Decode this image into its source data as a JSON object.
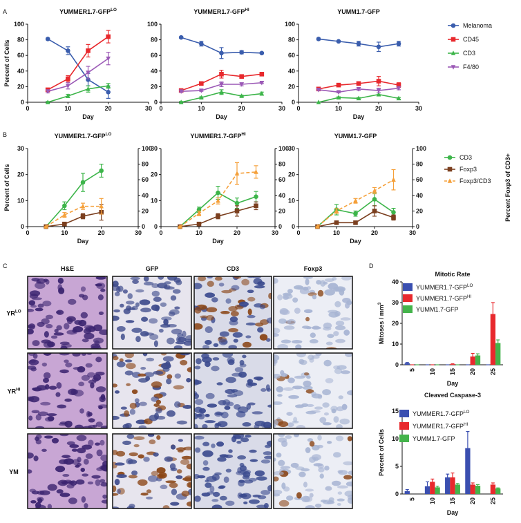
{
  "panel_labels": [
    "A",
    "B",
    "C",
    "D"
  ],
  "chart_data": [
    {
      "type": "line",
      "title": "YUMMER1.7-GFP",
      "title_sup": "LO",
      "x_label": "Day",
      "y_label": "Percent of Cells",
      "xlim": [
        0,
        30
      ],
      "xticks": [
        0,
        10,
        20,
        30
      ],
      "ylim": [
        0,
        100
      ],
      "yticks": [
        0,
        20,
        40,
        60,
        80,
        100
      ],
      "x": [
        5,
        10,
        15,
        20
      ],
      "series": [
        {
          "color": "#3a5dad",
          "marker": "circle",
          "values": [
            81,
            66,
            29,
            13
          ],
          "errors": [
            1,
            5,
            8,
            8
          ]
        },
        {
          "color": "#e8292d",
          "marker": "square",
          "values": [
            16,
            30,
            66,
            84
          ],
          "errors": [
            2,
            4,
            8,
            8
          ]
        },
        {
          "color": "#3db54a",
          "marker": "triangle",
          "values": [
            0,
            8,
            17,
            21
          ],
          "errors": [
            1,
            2,
            4,
            3
          ]
        },
        {
          "color": "#9b59b6",
          "marker": "triangle-down",
          "values": [
            14,
            21,
            38,
            56
          ],
          "errors": [
            2,
            4,
            8,
            8
          ]
        }
      ]
    },
    {
      "type": "line",
      "title": "YUMMER1.7-GFP",
      "title_sup": "HI",
      "x_label": "Day",
      "xlim": [
        0,
        30
      ],
      "xticks": [
        0,
        10,
        20,
        30
      ],
      "ylim": [
        0,
        100
      ],
      "yticks": [
        0,
        20,
        40,
        60,
        80,
        100
      ],
      "x": [
        5,
        10,
        15,
        20,
        25
      ],
      "series": [
        {
          "color": "#3a5dad",
          "marker": "circle",
          "values": [
            83,
            75,
            63,
            64,
            63
          ],
          "errors": [
            1,
            3,
            7,
            2,
            1
          ]
        },
        {
          "color": "#e8292d",
          "marker": "square",
          "values": [
            15,
            24,
            36,
            33,
            36
          ],
          "errors": [
            2,
            2,
            5,
            2,
            1
          ]
        },
        {
          "color": "#3db54a",
          "marker": "triangle",
          "values": [
            0,
            6,
            13,
            8,
            11
          ],
          "errors": [
            1,
            1,
            3,
            1,
            2
          ]
        },
        {
          "color": "#9b59b6",
          "marker": "triangle-down",
          "values": [
            14,
            15,
            23,
            23,
            25
          ],
          "errors": [
            1,
            1,
            3,
            2,
            1
          ]
        }
      ]
    },
    {
      "type": "line",
      "title": "YUMM1.7-GFP",
      "x_label": "Day",
      "legend": "right",
      "xlim": [
        0,
        30
      ],
      "xticks": [
        0,
        10,
        20,
        30
      ],
      "ylim": [
        0,
        100
      ],
      "yticks": [
        0,
        20,
        40,
        60,
        80,
        100
      ],
      "x": [
        5,
        10,
        15,
        20,
        25
      ],
      "series": [
        {
          "name": "Melanoma",
          "color": "#3a5dad",
          "marker": "circle",
          "values": [
            81,
            78,
            75,
            71,
            75
          ],
          "errors": [
            1,
            1,
            3,
            6,
            3
          ]
        },
        {
          "name": "CD45",
          "color": "#e8292d",
          "marker": "square",
          "values": [
            17,
            22,
            24,
            27,
            22
          ],
          "errors": [
            1,
            2,
            2,
            6,
            3
          ]
        },
        {
          "name": "CD3",
          "color": "#3db54a",
          "marker": "triangle",
          "values": [
            0,
            6,
            5,
            10,
            5
          ],
          "errors": [
            0,
            1,
            1,
            2,
            1
          ]
        },
        {
          "name": "F4/80",
          "color": "#9b59b6",
          "marker": "triangle-down",
          "values": [
            16,
            13,
            17,
            15,
            18
          ],
          "errors": [
            1,
            1,
            2,
            3,
            2
          ]
        }
      ]
    },
    {
      "type": "line",
      "title": "YUMMER1.7-GFP",
      "title_sup": "LO",
      "x_label": "Day",
      "y_label": "Percent of Cells",
      "xlim": [
        0,
        30
      ],
      "xticks": [
        0,
        10,
        20,
        30
      ],
      "ylim": [
        0,
        30
      ],
      "yticks": [
        0,
        10,
        20,
        30
      ],
      "y2lim": [
        0,
        100
      ],
      "y2ticks": [
        0,
        20,
        40,
        60,
        80,
        100
      ],
      "x": [
        5,
        10,
        15,
        20
      ],
      "series": [
        {
          "color": "#3db54a",
          "marker": "circle",
          "values": [
            0,
            8,
            17,
            21.5
          ],
          "errors": [
            0,
            1.5,
            3.5,
            2.5
          ]
        },
        {
          "color": "#7b3f1f",
          "marker": "square",
          "values": [
            0,
            1,
            4,
            5.5
          ],
          "errors": [
            0,
            0.5,
            1,
            3
          ]
        },
        {
          "color": "#f5a03a",
          "marker": "triangle",
          "dash": true,
          "axis": "y2",
          "values": [
            0,
            15,
            26,
            26
          ],
          "errors": [
            0,
            3,
            4,
            10
          ]
        }
      ]
    },
    {
      "type": "line",
      "title": "YUMMER1.7-GFP",
      "title_sup": "HI",
      "x_label": "Day",
      "xlim": [
        0,
        30
      ],
      "xticks": [
        0,
        10,
        20,
        30
      ],
      "ylim": [
        0,
        30
      ],
      "yticks": [
        0,
        10,
        20,
        30
      ],
      "y2lim": [
        0,
        100
      ],
      "y2ticks": [
        0,
        20,
        40,
        60,
        80,
        100
      ],
      "x": [
        5,
        10,
        15,
        20,
        25
      ],
      "series": [
        {
          "color": "#3db54a",
          "marker": "circle",
          "values": [
            0,
            6.5,
            13,
            9,
            11.5
          ],
          "errors": [
            0,
            1,
            2.5,
            2,
            2
          ]
        },
        {
          "color": "#7b3f1f",
          "marker": "square",
          "values": [
            0,
            1,
            4,
            6,
            8
          ],
          "errors": [
            0,
            0.3,
            1,
            2,
            1.5
          ]
        },
        {
          "color": "#f5a03a",
          "marker": "triangle",
          "dash": true,
          "axis": "y2",
          "values": [
            0,
            17,
            33,
            68,
            70
          ],
          "errors": [
            0,
            3,
            4,
            14,
            8
          ]
        }
      ]
    },
    {
      "type": "line",
      "title": "YUMM1.7-GFP",
      "x_label": "Day",
      "y2_label": "Percent Foxp3 of CD3+",
      "legend": "right",
      "xlim": [
        0,
        30
      ],
      "xticks": [
        0,
        10,
        20,
        30
      ],
      "ylim": [
        0,
        30
      ],
      "yticks": [
        0,
        10,
        20,
        30
      ],
      "y2lim": [
        0,
        100
      ],
      "y2ticks": [
        0,
        20,
        40,
        60,
        80,
        100
      ],
      "x": [
        5,
        10,
        15,
        20,
        25
      ],
      "series": [
        {
          "name": "CD3",
          "color": "#3db54a",
          "marker": "circle",
          "values": [
            0,
            6.5,
            5,
            10.5,
            5.5
          ],
          "errors": [
            0,
            2,
            1,
            2.5,
            1.5
          ]
        },
        {
          "name": "Foxp3",
          "color": "#7b3f1f",
          "marker": "square",
          "values": [
            0,
            1.5,
            1.5,
            6,
            3.5
          ],
          "errors": [
            0,
            0.3,
            0.3,
            2,
            1
          ]
        },
        {
          "name": "Foxp3/CD3",
          "color": "#f5a03a",
          "marker": "triangle",
          "dash": true,
          "axis": "y2",
          "values": [
            0,
            20,
            33,
            46,
            60
          ],
          "errors": [
            0,
            3,
            3,
            4,
            13
          ]
        }
      ]
    },
    {
      "type": "bar",
      "title": "Mitotic Rate",
      "x_label": "Day",
      "y_label": "Mitoses / mm",
      "y_label_sup": "3",
      "legend": "upper left",
      "categories": [
        "5",
        "10",
        "15",
        "20",
        "25"
      ],
      "ylim": [
        0,
        40
      ],
      "yticks": [
        0,
        10,
        20,
        30,
        40
      ],
      "series": [
        {
          "name": "YUMMER1.7-GFP",
          "name_sup": "LO",
          "color": "#3a4fb0",
          "values": [
            0.8,
            0,
            0,
            0,
            0
          ],
          "errors": [
            0.3,
            0,
            0,
            0,
            0
          ]
        },
        {
          "name": "YUMMER1.7-GFP",
          "name_sup": "HI",
          "color": "#e8292d",
          "values": [
            0,
            0,
            0.3,
            4,
            24.5
          ],
          "errors": [
            0,
            0,
            0.2,
            1.5,
            5.5
          ]
        },
        {
          "name": "YUMM1.7-GFP",
          "color": "#44b44b",
          "values": [
            0,
            0,
            0,
            4.5,
            10.5
          ],
          "errors": [
            0,
            0,
            0,
            0.8,
            1.5
          ]
        }
      ]
    },
    {
      "type": "bar",
      "title": "Cleaved Caspase-3",
      "x_label": "Day",
      "y_label": "Percent of Cells",
      "legend": "upper left",
      "categories": [
        "5",
        "10",
        "15",
        "20",
        "25"
      ],
      "ylim": [
        0,
        15
      ],
      "yticks": [
        0,
        5,
        10,
        15
      ],
      "series": [
        {
          "name": "YUMMER1.7-GFP",
          "name_sup": "LO",
          "color": "#3a4fb0",
          "values": [
            0.5,
            1.4,
            3,
            8.3,
            null
          ],
          "errors": [
            0.3,
            0.8,
            0.6,
            3,
            null
          ]
        },
        {
          "name": "YUMMER1.7-GFP",
          "name_sup": "HI",
          "color": "#e8292d",
          "values": [
            null,
            2.2,
            3,
            1.7,
            1.7
          ],
          "errors": [
            null,
            0.5,
            0.8,
            0.3,
            0.3
          ]
        },
        {
          "name": "YUMM1.7-GFP",
          "color": "#44b44b",
          "values": [
            null,
            1.2,
            1.7,
            1.5,
            1
          ],
          "errors": [
            null,
            0.2,
            0.2,
            0.2,
            0.1
          ]
        }
      ]
    }
  ],
  "histology": {
    "columns": [
      "H&E",
      "GFP",
      "CD3",
      "Foxp3"
    ],
    "rows": [
      {
        "label": "YR",
        "label_sup": "LO"
      },
      {
        "label": "YR",
        "label_sup": "HI"
      },
      {
        "label": "YM"
      }
    ]
  }
}
